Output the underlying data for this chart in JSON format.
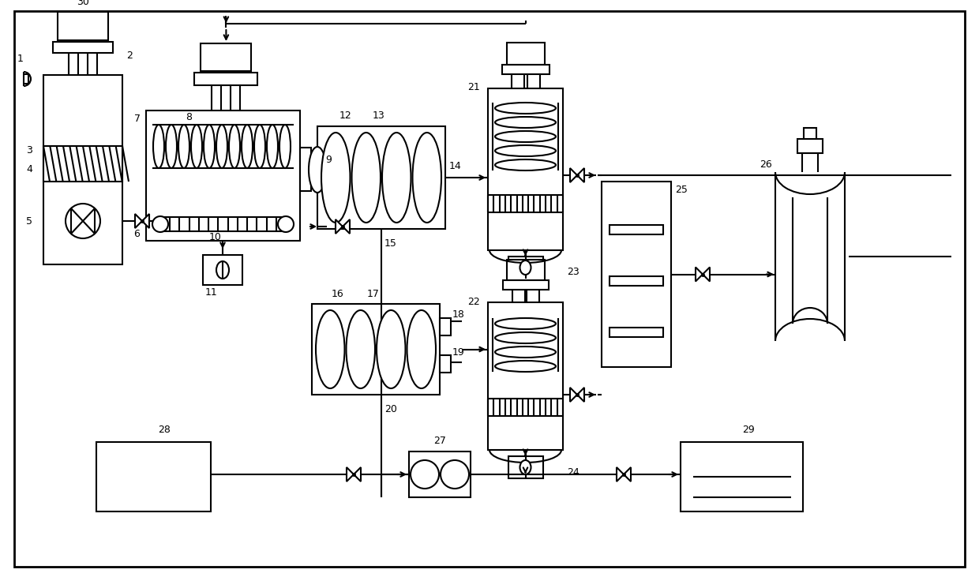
{
  "bg": "#ffffff",
  "lc": "#000000",
  "lw": 1.5,
  "fig_w": 12.4,
  "fig_h": 7.31
}
